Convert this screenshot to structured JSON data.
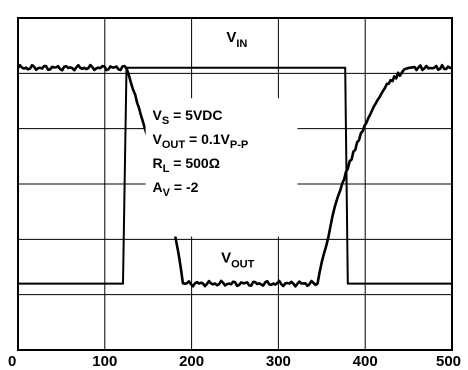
{
  "chart_data": {
    "type": "line",
    "title": "",
    "xlabel": "",
    "ylabel": "",
    "xlim": [
      0,
      500
    ],
    "ylim": [
      0,
      6
    ],
    "grid": true,
    "x_tick_labels": [
      "0",
      "100",
      "200",
      "300",
      "400",
      "500"
    ],
    "y_divisions": 6,
    "series": [
      {
        "name": "VIN",
        "label_main": "V",
        "label_sub": "IN",
        "x": [
          0,
          120,
          121,
          125,
          376,
          377,
          380,
          500
        ],
        "y": [
          1.2,
          1.2,
          1.2,
          5.1,
          5.1,
          5.1,
          1.2,
          1.2
        ]
      },
      {
        "name": "VOUT",
        "label_main": "V",
        "label_sub": "OUT",
        "x": [
          0,
          125,
          135,
          150,
          165,
          180,
          190,
          345,
          355,
          365,
          380,
          395,
          410,
          425,
          440,
          450,
          500
        ],
        "y": [
          5.1,
          5.1,
          4.6,
          3.8,
          3.0,
          2.2,
          1.2,
          1.2,
          1.9,
          2.6,
          3.3,
          3.9,
          4.4,
          4.8,
          5.0,
          5.1,
          5.1
        ]
      }
    ],
    "annotations": [
      {
        "text_main": "V",
        "text_sub": "S",
        "text_rest": " = 5VDC"
      },
      {
        "text_main": "V",
        "text_sub": "OUT",
        "text_rest": " = 0.1V",
        "text_sub2": "P-P"
      },
      {
        "text_main": "R",
        "text_sub": "L",
        "text_rest": " = 500Ω"
      },
      {
        "text_main": "A",
        "text_sub": "V",
        "text_rest": " = -2"
      }
    ]
  }
}
